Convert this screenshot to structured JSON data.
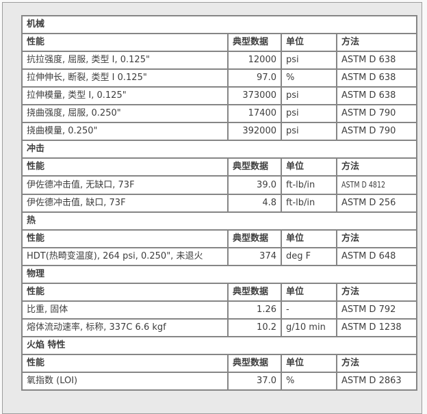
{
  "theme": {
    "outer_bg": "#f9f9f9",
    "page_bg": "#e9e9e9",
    "panel_border": "#9c9c9c",
    "cell_border": "#858585",
    "section_bg": "#dcdcdc",
    "row_bg": "#ffffff",
    "text_color": "#3d3d3d",
    "heading_color": "#333333"
  },
  "table": {
    "columns": [
      "性能",
      "典型数据",
      "单位",
      "方法"
    ],
    "sections": [
      {
        "title": "机械",
        "rows": [
          {
            "property": "抗拉强度, 屈服, 类型 I, 0.125\"",
            "value": "12000",
            "unit": "psi",
            "method": "ASTM D 638"
          },
          {
            "property": "拉伸伸长, 断裂, 类型 I 0.125\"",
            "value": "97.0",
            "unit": "%",
            "method": "ASTM D 638"
          },
          {
            "property": "拉伸模量, 类型 I, 0.125\"",
            "value": "373000",
            "unit": "psi",
            "method": "ASTM D 638"
          },
          {
            "property": "挠曲强度, 屈服, 0.250\"",
            "value": "17400",
            "unit": "psi",
            "method": "ASTM D 790"
          },
          {
            "property": "挠曲模量, 0.250\"",
            "value": "392000",
            "unit": "psi",
            "method": "ASTM D 790"
          }
        ]
      },
      {
        "title": "冲击",
        "rows": [
          {
            "property": "伊佐德冲击值, 无缺口, 73F",
            "value": "39.0",
            "unit": "ft-lb/in",
            "method": "ASTM D 4812",
            "condensed": true
          },
          {
            "property": "伊佐德冲击值, 缺口, 73F",
            "value": "4.8",
            "unit": "ft-lb/in",
            "method": "ASTM D 256"
          }
        ]
      },
      {
        "title": "热",
        "rows": [
          {
            "property": "HDT(热畸变温度), 264 psi, 0.250\", 未退火",
            "value": "374",
            "unit": "deg F",
            "method": "ASTM D 648"
          }
        ]
      },
      {
        "title": "物理",
        "rows": [
          {
            "property": "比重, 固体",
            "value": "1.26",
            "unit": "-",
            "method": "ASTM D 792"
          },
          {
            "property": "熔体流动速率, 标称, 337C 6.6 kgf",
            "value": "10.2",
            "unit": "g/10 min",
            "method": "ASTM D 1238"
          }
        ]
      },
      {
        "title": "火焰 特性",
        "rows": [
          {
            "property": "氧指数 (LOI)",
            "value": "37.0",
            "unit": "%",
            "method": "ASTM D 2863"
          }
        ]
      }
    ]
  }
}
